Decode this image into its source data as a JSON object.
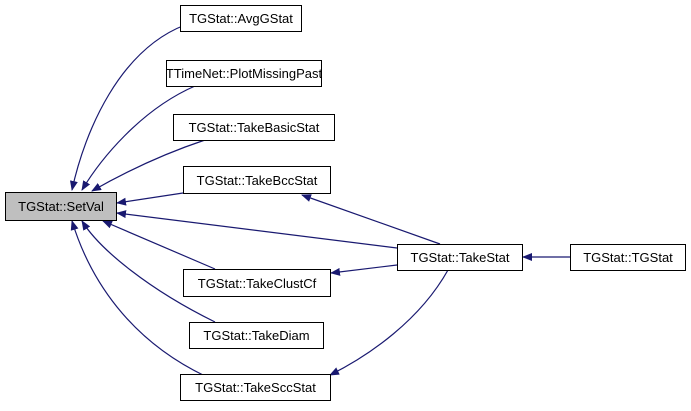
{
  "edge_color": "#191970",
  "focus_fill": "#bfbfbf",
  "nodes": {
    "setval": "TGStat::SetVal",
    "avggstat": "TGStat::AvgGStat",
    "plotmissingpast": "TTimeNet::PlotMissingPast",
    "takebasicstat": "TGStat::TakeBasicStat",
    "takebccstat": "TGStat::TakeBccStat",
    "takestat": "TGStat::TakeStat",
    "takeclustcf": "TGStat::TakeClustCf",
    "takediam": "TGStat::TakeDiam",
    "takesccstat": "TGStat::TakeSccStat",
    "tgstat": "TGStat::TGStat"
  },
  "edges": [
    [
      "avggstat",
      "setval"
    ],
    [
      "plotmissingpast",
      "setval"
    ],
    [
      "takebasicstat",
      "setval"
    ],
    [
      "takebccstat",
      "setval"
    ],
    [
      "takestat",
      "setval"
    ],
    [
      "takeclustcf",
      "setval"
    ],
    [
      "takediam",
      "setval"
    ],
    [
      "takesccstat",
      "setval"
    ],
    [
      "takestat",
      "takebccstat"
    ],
    [
      "takestat",
      "takeclustcf"
    ],
    [
      "takestat",
      "takesccstat"
    ],
    [
      "tgstat",
      "takestat"
    ]
  ]
}
